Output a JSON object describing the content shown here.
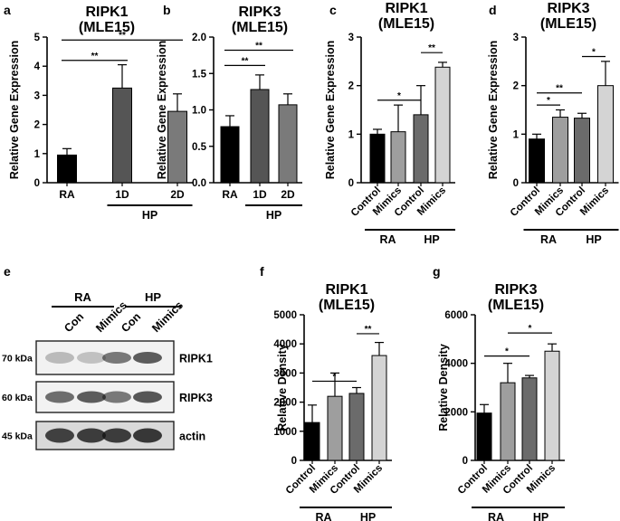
{
  "panels": [
    {
      "letter": "a",
      "title": [
        "RIPK1",
        "(MLE15)"
      ],
      "ylabel": "Relative Gene Expression",
      "ylim": [
        0,
        5
      ],
      "yticks": [
        0,
        1,
        2,
        3,
        4,
        5
      ],
      "ytick_labels": [
        "0",
        "1",
        "2",
        "3",
        "4",
        "5"
      ],
      "categories": [
        "RA",
        "1D",
        "2D"
      ],
      "rotated": false,
      "values": [
        0.95,
        3.25,
        2.45
      ],
      "errors": [
        0.22,
        0.8,
        0.6
      ],
      "colors": [
        "#000000",
        "#555555",
        "#7a7a7a"
      ],
      "groups": [
        {
          "label": "HP",
          "from": 1,
          "to": 2
        }
      ],
      "significance": [
        {
          "from": 0,
          "to": 1,
          "y": 4.2,
          "label": "**"
        },
        {
          "from": 0,
          "to": 2,
          "y": 4.9,
          "label": "**"
        }
      ]
    },
    {
      "letter": "b",
      "title": [
        "RIPK3",
        "(MLE15)"
      ],
      "ylabel": "Relative Gene Expression",
      "ylim": [
        0,
        2
      ],
      "yticks": [
        0,
        0.5,
        1,
        1.5,
        2
      ],
      "ytick_labels": [
        "0.0",
        "0.5",
        "1.0",
        "1.5",
        "2.0"
      ],
      "categories": [
        "RA",
        "1D",
        "2D"
      ],
      "rotated": false,
      "values": [
        0.77,
        1.28,
        1.07
      ],
      "errors": [
        0.15,
        0.2,
        0.15
      ],
      "colors": [
        "#000000",
        "#555555",
        "#7a7a7a"
      ],
      "groups": [
        {
          "label": "HP",
          "from": 1,
          "to": 2
        }
      ],
      "significance": [
        {
          "from": 0,
          "to": 1,
          "y": 1.61,
          "label": "**"
        },
        {
          "from": 0,
          "to": 2,
          "y": 1.82,
          "label": "**"
        }
      ]
    },
    {
      "letter": "c",
      "title": [
        "RIPK1",
        "(MLE15)"
      ],
      "ylabel": "Relative Gene Expression",
      "ylim": [
        0,
        3
      ],
      "yticks": [
        0,
        1,
        2,
        3
      ],
      "ytick_labels": [
        "0",
        "1",
        "2",
        "3"
      ],
      "categories": [
        "Control",
        "Mimics",
        "Control",
        "Mimics"
      ],
      "rotated": true,
      "values": [
        1.0,
        1.05,
        1.4,
        2.38
      ],
      "errors": [
        0.1,
        0.55,
        0.6,
        0.1
      ],
      "colors": [
        "#000000",
        "#9e9e9e",
        "#6b6b6b",
        "#d4d4d4"
      ],
      "groups": [
        {
          "label": "RA",
          "from": 0,
          "to": 1
        },
        {
          "label": "HP",
          "from": 2,
          "to": 3
        }
      ],
      "significance": [
        {
          "from": 0,
          "to": 2,
          "y": 1.7,
          "label": "*"
        },
        {
          "from": 2,
          "to": 3,
          "y": 2.68,
          "label": "**"
        }
      ]
    },
    {
      "letter": "d",
      "title": [
        "RIPK3",
        "(MLE15)"
      ],
      "ylabel": "Relative Gene Expression",
      "ylim": [
        0,
        3
      ],
      "yticks": [
        0,
        1,
        2,
        3
      ],
      "ytick_labels": [
        "0",
        "1",
        "2",
        "3"
      ],
      "categories": [
        "Control",
        "Mimics",
        "Control",
        "Mimics"
      ],
      "rotated": true,
      "values": [
        0.9,
        1.35,
        1.33,
        2.0
      ],
      "errors": [
        0.1,
        0.15,
        0.1,
        0.5
      ],
      "colors": [
        "#000000",
        "#9e9e9e",
        "#6b6b6b",
        "#d4d4d4"
      ],
      "groups": [
        {
          "label": "RA",
          "from": 0,
          "to": 1
        },
        {
          "label": "HP",
          "from": 2,
          "to": 3
        }
      ],
      "significance": [
        {
          "from": 0,
          "to": 1,
          "y": 1.6,
          "label": "*"
        },
        {
          "from": 0,
          "to": 2,
          "y": 1.85,
          "label": "**"
        },
        {
          "from": 2,
          "to": 3,
          "y": 2.6,
          "label": "*"
        }
      ]
    },
    {
      "letter": "f",
      "title": [
        "RIPK1",
        "(MLE15)"
      ],
      "ylabel": "Relative Density",
      "ylim": [
        0,
        5000
      ],
      "yticks": [
        0,
        1000,
        2000,
        3000,
        4000,
        5000
      ],
      "ytick_labels": [
        "0",
        "1000",
        "2000",
        "3000",
        "4000",
        "5000"
      ],
      "categories": [
        "Control",
        "Mimics",
        "Control",
        "Mimics"
      ],
      "rotated": true,
      "values": [
        1300,
        2200,
        2300,
        3600
      ],
      "errors": [
        600,
        800,
        200,
        450
      ],
      "colors": [
        "#000000",
        "#9e9e9e",
        "#6b6b6b",
        "#d4d4d4"
      ],
      "groups": [
        {
          "label": "RA",
          "from": 0,
          "to": 1
        },
        {
          "label": "HP",
          "from": 2,
          "to": 3
        }
      ],
      "significance": [
        {
          "from": 0,
          "to": 2,
          "y": 2720,
          "label": "*"
        },
        {
          "from": 2,
          "to": 3,
          "y": 4350,
          "label": "**"
        }
      ]
    },
    {
      "letter": "g",
      "title": [
        "RIPK3",
        "(MLE15)"
      ],
      "ylabel": "Relative Density",
      "ylim": [
        0,
        6000
      ],
      "yticks": [
        0,
        2000,
        4000,
        6000
      ],
      "ytick_labels": [
        "0",
        "2000",
        "4000",
        "6000"
      ],
      "categories": [
        "Control",
        "Mimics",
        "Control",
        "Mimics"
      ],
      "rotated": true,
      "values": [
        1950,
        3200,
        3400,
        4500
      ],
      "errors": [
        350,
        800,
        100,
        300
      ],
      "colors": [
        "#000000",
        "#9e9e9e",
        "#6b6b6b",
        "#d4d4d4"
      ],
      "groups": [
        {
          "label": "RA",
          "from": 0,
          "to": 1
        },
        {
          "label": "HP",
          "from": 2,
          "to": 3
        }
      ],
      "significance": [
        {
          "from": 0,
          "to": 2,
          "y": 4300,
          "label": "*"
        },
        {
          "from": 1,
          "to": 3,
          "y": 5250,
          "label": "*"
        }
      ]
    }
  ],
  "blot": {
    "letter": "e",
    "groups": [
      "RA",
      "HP"
    ],
    "lanes": [
      "Con",
      "Mimics",
      "Con",
      "Mimics"
    ],
    "rows": [
      {
        "kda": "70 kDa",
        "name": "RIPK1"
      },
      {
        "kda": "60 kDa",
        "name": "RIPK3"
      },
      {
        "kda": "45 kDa",
        "name": "actin"
      }
    ]
  },
  "chart_data": [
    {
      "type": "bar",
      "title": "RIPK1 (MLE15)",
      "ylabel": "Relative Gene Expression",
      "categories": [
        "RA",
        "1D",
        "2D"
      ],
      "group_labels": [
        "HP"
      ],
      "values": [
        0.95,
        3.25,
        2.45
      ],
      "error_bars": [
        0.22,
        0.8,
        0.6
      ],
      "ylim": [
        0,
        5
      ]
    },
    {
      "type": "bar",
      "title": "RIPK3 (MLE15)",
      "ylabel": "Relative Gene Expression",
      "categories": [
        "RA",
        "1D",
        "2D"
      ],
      "group_labels": [
        "HP"
      ],
      "values": [
        0.77,
        1.28,
        1.07
      ],
      "error_bars": [
        0.15,
        0.2,
        0.15
      ],
      "ylim": [
        0,
        2
      ]
    },
    {
      "type": "bar",
      "title": "RIPK1 (MLE15)",
      "ylabel": "Relative Gene Expression",
      "categories": [
        "Control",
        "Mimics",
        "Control",
        "Mimics"
      ],
      "group_labels": [
        "RA",
        "HP"
      ],
      "values": [
        1.0,
        1.05,
        1.4,
        2.38
      ],
      "error_bars": [
        0.1,
        0.55,
        0.6,
        0.1
      ],
      "ylim": [
        0,
        3
      ]
    },
    {
      "type": "bar",
      "title": "RIPK3 (MLE15)",
      "ylabel": "Relative Gene Expression",
      "categories": [
        "Control",
        "Mimics",
        "Control",
        "Mimics"
      ],
      "group_labels": [
        "RA",
        "HP"
      ],
      "values": [
        0.9,
        1.35,
        1.33,
        2.0
      ],
      "error_bars": [
        0.1,
        0.15,
        0.1,
        0.5
      ],
      "ylim": [
        0,
        3
      ]
    },
    {
      "type": "bar",
      "title": "RIPK1 (MLE15)",
      "ylabel": "Relative Density",
      "categories": [
        "Control",
        "Mimics",
        "Control",
        "Mimics"
      ],
      "group_labels": [
        "RA",
        "HP"
      ],
      "values": [
        1300,
        2200,
        2300,
        3600
      ],
      "error_bars": [
        600,
        800,
        200,
        450
      ],
      "ylim": [
        0,
        5000
      ]
    },
    {
      "type": "bar",
      "title": "RIPK3 (MLE15)",
      "ylabel": "Relative Density",
      "categories": [
        "Control",
        "Mimics",
        "Control",
        "Mimics"
      ],
      "group_labels": [
        "RA",
        "HP"
      ],
      "values": [
        1950,
        3200,
        3400,
        4500
      ],
      "error_bars": [
        350,
        800,
        100,
        300
      ],
      "ylim": [
        0,
        6000
      ]
    }
  ]
}
